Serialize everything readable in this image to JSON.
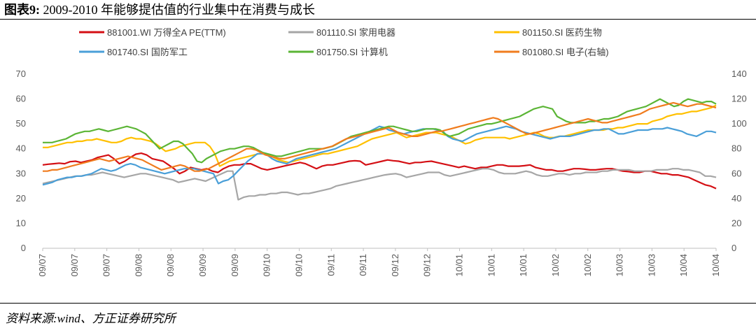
{
  "figure": {
    "label": "图表9:",
    "title": "2009-2010 年能够提估值的行业集中在消费与成长"
  },
  "source": "资料来源:wind、方正证券研究所",
  "chart_data": {
    "type": "line",
    "x_tick_labels": [
      "09/07",
      "09/07",
      "09/07",
      "09/08",
      "09/08",
      "09/09",
      "09/09",
      "09/10",
      "09/10",
      "09/11",
      "09/11",
      "09/12",
      "09/12",
      "10/01",
      "10/01",
      "10/01",
      "10/02",
      "10/02",
      "10/03",
      "10/03",
      "10/04",
      "10/04"
    ],
    "y_left": {
      "ticks": [
        0,
        10,
        20,
        30,
        40,
        50,
        60,
        70
      ],
      "range": [
        0,
        70
      ]
    },
    "y_right": {
      "ticks": [
        0,
        20,
        40,
        60,
        80,
        100,
        120,
        140
      ],
      "range": [
        0,
        140
      ]
    },
    "grid": false,
    "legend_position": "top",
    "series": [
      {
        "name": "881001.WI 万得全A PE(TTM)",
        "axis": "left",
        "color": "#d40f14",
        "values": [
          33.5,
          33.8,
          34.0,
          34.2,
          34.0,
          34.8,
          35.0,
          34.5,
          35.0,
          35.5,
          36.5,
          37.0,
          37.5,
          36.0,
          34.0,
          35.0,
          36.5,
          37.8,
          38.2,
          37.5,
          36.0,
          35.5,
          35.0,
          33.5,
          32.0,
          30.0,
          31.0,
          32.5,
          32.0,
          31.5,
          32.0,
          31.0,
          30.5,
          32.0,
          33.0,
          33.5,
          33.5,
          34.0,
          34.0,
          33.0,
          32.0,
          31.5,
          32.0,
          32.5,
          33.0,
          33.5,
          34.0,
          34.5,
          34.0,
          33.0,
          32.0,
          33.0,
          33.5,
          33.5,
          34.0,
          34.5,
          35.0,
          35.2,
          35.0,
          33.5,
          34.0,
          34.5,
          35.0,
          35.5,
          35.2,
          35.0,
          34.5,
          34.0,
          34.5,
          34.5,
          34.8,
          35.0,
          34.5,
          34.0,
          33.5,
          33.0,
          32.5,
          33.0,
          32.5,
          32.0,
          32.5,
          32.5,
          33.0,
          33.5,
          33.5,
          33.0,
          33.0,
          33.0,
          33.2,
          33.5,
          32.5,
          32.0,
          31.5,
          31.5,
          31.0,
          31.0,
          31.5,
          32.0,
          32.0,
          31.8,
          31.5,
          31.5,
          31.8,
          32.0,
          32.0,
          31.5,
          31.0,
          30.8,
          30.5,
          30.5,
          31.0,
          31.0,
          30.5,
          30.0,
          30.0,
          29.5,
          29.5,
          29.0,
          28.5,
          27.5,
          26.5,
          25.5,
          25.0,
          24.0
        ]
      },
      {
        "name": "801110.SI 家用电器",
        "axis": "left",
        "color": "#a6a6a6",
        "values": [
          26.0,
          26.5,
          27.0,
          27.5,
          28.0,
          28.5,
          29.0,
          29.0,
          29.5,
          29.5,
          30.0,
          30.5,
          30.0,
          29.5,
          29.0,
          28.5,
          29.0,
          29.5,
          30.0,
          30.0,
          29.5,
          29.0,
          28.5,
          28.0,
          27.5,
          26.5,
          27.0,
          27.5,
          28.0,
          27.5,
          27.0,
          28.0,
          29.0,
          30.0,
          31.0,
          31.0,
          19.5,
          20.5,
          21.0,
          21.0,
          21.5,
          21.5,
          22.0,
          22.0,
          22.5,
          22.5,
          22.0,
          21.5,
          22.0,
          22.0,
          22.5,
          23.0,
          23.5,
          24.0,
          25.0,
          25.5,
          26.0,
          26.5,
          27.0,
          27.5,
          28.0,
          28.5,
          29.0,
          29.5,
          29.8,
          30.0,
          29.5,
          28.5,
          29.0,
          29.5,
          30.0,
          30.5,
          30.5,
          30.5,
          29.5,
          29.0,
          29.5,
          30.0,
          30.5,
          31.0,
          31.5,
          32.0,
          32.0,
          31.5,
          30.5,
          30.0,
          30.0,
          30.0,
          30.5,
          31.0,
          30.5,
          29.5,
          29.0,
          29.0,
          29.5,
          30.0,
          30.0,
          29.5,
          30.0,
          30.0,
          30.5,
          30.5,
          30.5,
          31.0,
          31.0,
          31.5,
          31.5,
          31.5,
          31.5,
          31.0,
          31.0,
          31.0,
          31.0,
          31.5,
          31.5,
          31.5,
          32.0,
          32.0,
          31.5,
          31.5,
          31.0,
          30.5,
          29.0,
          29.0,
          28.5
        ]
      },
      {
        "name": "801150.SI 医药生物",
        "axis": "left",
        "color": "#ffc000",
        "values": [
          40.5,
          40.5,
          41.0,
          41.5,
          42.0,
          42.5,
          42.5,
          43.0,
          43.0,
          43.5,
          43.5,
          44.0,
          43.5,
          43.0,
          42.5,
          42.5,
          43.0,
          44.0,
          44.5,
          44.0,
          44.0,
          43.5,
          43.0,
          42.0,
          40.5,
          39.0,
          39.5,
          40.0,
          41.0,
          41.5,
          42.0,
          42.5,
          42.5,
          42.5,
          41.0,
          38.0,
          33.0,
          34.0,
          35.0,
          35.5,
          36.0,
          36.5,
          37.0,
          37.5,
          38.0,
          38.0,
          37.5,
          36.5,
          35.5,
          35.0,
          34.5,
          35.0,
          35.5,
          36.0,
          36.5,
          37.0,
          37.5,
          38.0,
          38.0,
          38.5,
          39.0,
          39.5,
          40.0,
          40.5,
          41.0,
          42.0,
          43.0,
          44.0,
          44.5,
          45.0,
          45.5,
          46.0,
          46.5,
          45.5,
          44.5,
          45.0,
          45.5,
          46.0,
          46.5,
          46.5,
          46.5,
          46.0,
          45.5,
          45.0,
          44.0,
          43.0,
          42.0,
          42.5,
          43.5,
          44.0,
          44.5,
          44.5,
          44.5,
          44.5,
          44.5,
          44.0,
          44.5,
          45.0,
          45.5,
          46.0,
          46.5,
          46.0,
          45.0,
          44.5,
          44.5,
          45.0,
          45.0,
          45.5,
          46.0,
          46.5,
          47.0,
          47.5,
          47.5,
          47.5,
          47.5,
          48.0,
          48.0,
          48.5,
          48.5,
          49.0,
          49.5,
          50.0,
          50.0,
          50.0,
          51.0,
          51.5,
          52.0,
          53.0,
          53.5,
          54.0,
          54.0,
          54.5,
          55.0,
          55.0,
          55.5,
          56.0,
          56.5,
          57.5
        ]
      },
      {
        "name": "801740.SI 国防军工",
        "axis": "right",
        "color": "#4a9fd8",
        "values": [
          51,
          52,
          53,
          55,
          56,
          57,
          57,
          58,
          58,
          59,
          60,
          62,
          64,
          63,
          62,
          63,
          65,
          67,
          68,
          67,
          65,
          64,
          63,
          62,
          61,
          60,
          61,
          62,
          63,
          64,
          64,
          64,
          63,
          62,
          61,
          60,
          52,
          54,
          55,
          58,
          62,
          66,
          70,
          73,
          76,
          76,
          75,
          72,
          70,
          69,
          68,
          70,
          72,
          73,
          74,
          75,
          76,
          77,
          78,
          79,
          80,
          82,
          84,
          86,
          88,
          90,
          92,
          94,
          96,
          98,
          97,
          95,
          94,
          93,
          92,
          93,
          94,
          95,
          96,
          96,
          96,
          95,
          94,
          90,
          88,
          87,
          86,
          88,
          90,
          92,
          93,
          94,
          95,
          96,
          97,
          98,
          97,
          96,
          94,
          93,
          92,
          91,
          90,
          89,
          88,
          89,
          90,
          90,
          90,
          91,
          92,
          93,
          94,
          95,
          95,
          96,
          96,
          94,
          92,
          92,
          93,
          94,
          95,
          95,
          95,
          96,
          96,
          96,
          97,
          96,
          95,
          94,
          92,
          91,
          90,
          92,
          94,
          94,
          93
        ]
      },
      {
        "name": "801750.SI 计算机",
        "axis": "right",
        "color": "#5bb535",
        "values": [
          85,
          85,
          85,
          86,
          87,
          88,
          90,
          92,
          93,
          94,
          94,
          95,
          96,
          95,
          94,
          95,
          96,
          97,
          98,
          97,
          96,
          94,
          92,
          88,
          84,
          80,
          82,
          84,
          86,
          86,
          84,
          80,
          76,
          70,
          69,
          72,
          74,
          76,
          78,
          79,
          80,
          80,
          81,
          82,
          82,
          81,
          79,
          77,
          76,
          75,
          74,
          74,
          75,
          76,
          77,
          78,
          79,
          80,
          80,
          80,
          80,
          81,
          82,
          84,
          86,
          88,
          90,
          91,
          92,
          93,
          94,
          95,
          96,
          97,
          98,
          98,
          97,
          96,
          95,
          94,
          94,
          95,
          96,
          96,
          96,
          95,
          92,
          90,
          91,
          92,
          94,
          96,
          97,
          98,
          99,
          100,
          100,
          101,
          102,
          103,
          104,
          105,
          106,
          108,
          110,
          112,
          113,
          114,
          113,
          112,
          106,
          104,
          102,
          101,
          101,
          101,
          101,
          102,
          102,
          103,
          104,
          104,
          105,
          106,
          108,
          110,
          111,
          112,
          113,
          114,
          116,
          118,
          120,
          118,
          116,
          114,
          115,
          118,
          120,
          119,
          118,
          117,
          118,
          118,
          116
        ]
      },
      {
        "name": "801080.SI 电子(右轴)",
        "axis": "right",
        "color": "#f07c1e",
        "values": [
          62,
          62,
          63,
          63,
          64,
          65,
          66,
          67,
          68,
          69,
          70,
          71,
          72,
          71,
          70,
          71,
          72,
          73,
          74,
          73,
          72,
          71,
          69,
          67,
          65,
          63,
          64,
          65,
          66,
          67,
          66,
          64,
          62,
          62,
          63,
          64,
          66,
          68,
          70,
          72,
          74,
          76,
          78,
          80,
          80,
          79,
          77,
          75,
          74,
          73,
          72,
          72,
          73,
          74,
          75,
          76,
          77,
          78,
          79,
          80,
          81,
          82,
          84,
          86,
          88,
          89,
          90,
          91,
          92,
          93,
          94,
          95,
          96,
          97,
          95,
          93,
          92,
          91,
          90,
          90,
          91,
          92,
          93,
          94,
          94,
          95,
          96,
          97,
          98,
          99,
          100,
          101,
          102,
          103,
          104,
          105,
          104,
          102,
          100,
          98,
          96,
          94,
          92,
          92,
          93,
          94,
          95,
          96,
          97,
          98,
          99,
          100,
          101,
          102,
          103,
          104,
          103,
          102,
          101,
          101,
          102,
          103,
          104,
          105,
          106,
          107,
          108,
          110,
          112,
          113,
          114,
          115,
          116,
          117,
          116,
          115,
          114,
          115,
          116,
          116,
          115,
          114,
          113
        ]
      }
    ]
  }
}
